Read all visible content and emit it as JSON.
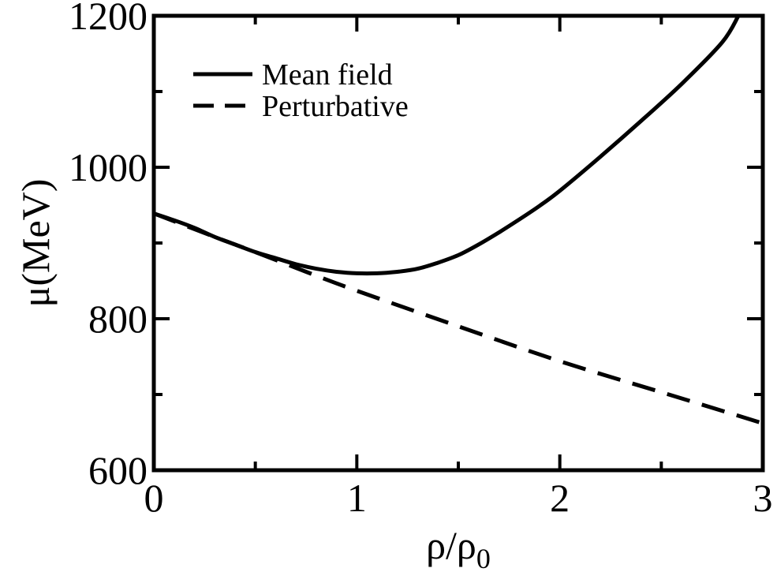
{
  "chart_data": {
    "type": "line",
    "xlabel": "ρ/ρ",
    "xlabel_sub": "0",
    "ylabel": "μ(MeV)",
    "xlim": [
      0,
      3
    ],
    "ylim": [
      600,
      1200
    ],
    "xticks": [
      0,
      1,
      2,
      3
    ],
    "xtick_labels": [
      "0",
      "1",
      "2",
      "3"
    ],
    "yticks": [
      600,
      800,
      1000,
      1200
    ],
    "ytick_labels": [
      "600",
      "800",
      "1000",
      "1200"
    ],
    "x_minor_step": 0.5,
    "y_minor_step": 100,
    "grid": false,
    "legend_position": "top-left",
    "series": [
      {
        "name": "Mean field",
        "style": "solid",
        "color": "#000000",
        "x": [
          0,
          0.1,
          0.2,
          0.3,
          0.4,
          0.5,
          0.6,
          0.7,
          0.8,
          0.9,
          1.0,
          1.1,
          1.2,
          1.3,
          1.4,
          1.5,
          1.6,
          1.7,
          1.8,
          1.9,
          2.0,
          2.2,
          2.4,
          2.6,
          2.8,
          2.88
        ],
        "y": [
          939,
          930,
          920,
          908,
          898,
          888,
          880,
          872,
          866,
          862,
          860,
          860,
          862,
          866,
          874,
          884,
          898,
          914,
          931,
          949,
          969,
          1014,
          1061,
          1110,
          1165,
          1200
        ]
      },
      {
        "name": "Perturbative",
        "style": "dashed",
        "color": "#000000",
        "x": [
          0,
          0.3,
          0.5,
          0.75,
          1.0,
          1.5,
          2.0,
          2.5,
          3.0
        ],
        "y": [
          939,
          908,
          888,
          862,
          837,
          790,
          744,
          703,
          662
        ]
      }
    ]
  }
}
